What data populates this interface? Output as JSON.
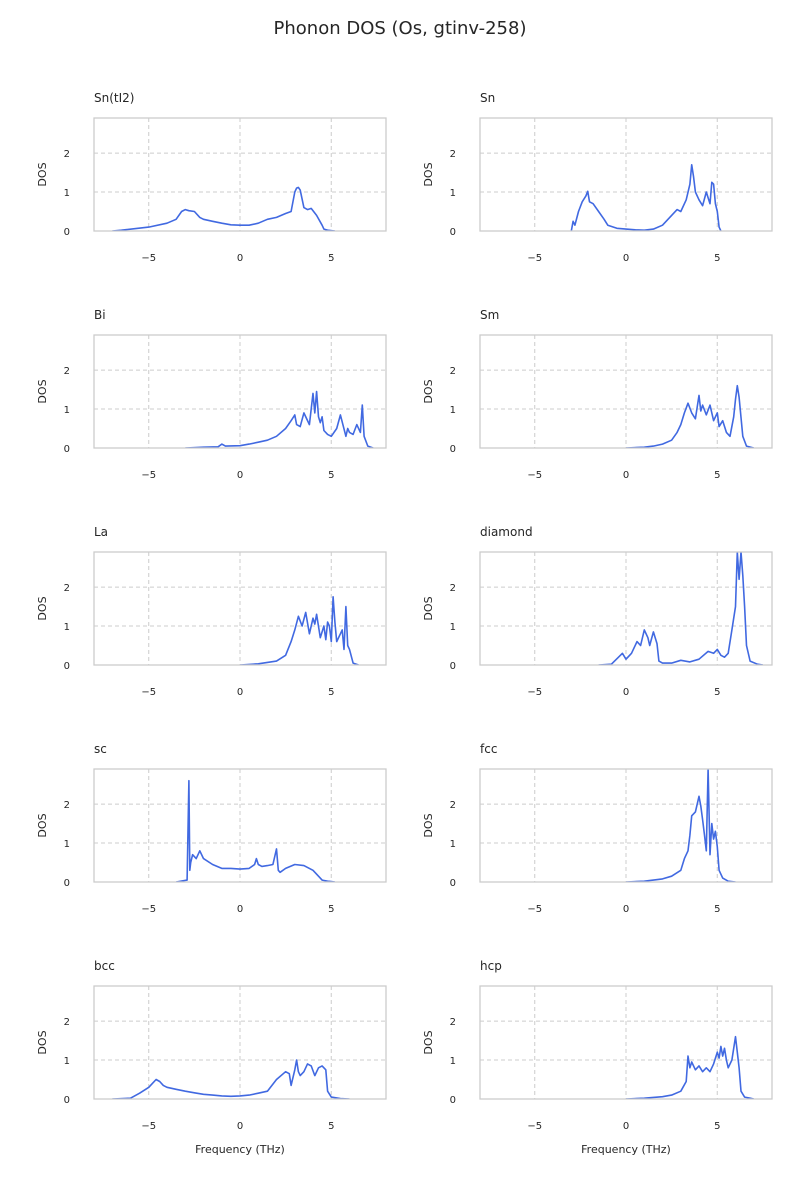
{
  "figure": {
    "title": "Phonon DOS (Os, gtinv-258)"
  },
  "chart_data": [
    {
      "type": "line",
      "title": "Sn(tI2)",
      "xlabel": "",
      "ylabel": "DOS",
      "xlim": [
        -8,
        8
      ],
      "ylim": [
        0,
        2.9
      ],
      "xticks": [
        -5,
        0,
        5
      ],
      "yticks": [
        0,
        1,
        2
      ],
      "grid": true,
      "series": [
        {
          "x": [
            -7,
            -6.5,
            -5,
            -4,
            -3.5,
            -3.2,
            -3.0,
            -2.8,
            -2.5,
            -2.2,
            -2.0,
            -1.5,
            -1.0,
            -0.5,
            0,
            0.5,
            1.0,
            1.5,
            2.0,
            2.5,
            2.8,
            3.0,
            3.1,
            3.2,
            3.3,
            3.5,
            3.7,
            3.9,
            4.2,
            4.5,
            4.6,
            4.8,
            5.2
          ],
          "y": [
            0,
            0.02,
            0.1,
            0.2,
            0.3,
            0.5,
            0.55,
            0.52,
            0.5,
            0.35,
            0.3,
            0.25,
            0.2,
            0.16,
            0.15,
            0.15,
            0.2,
            0.3,
            0.35,
            0.45,
            0.5,
            1.0,
            1.1,
            1.12,
            1.05,
            0.6,
            0.55,
            0.58,
            0.4,
            0.15,
            0.05,
            0.02,
            0
          ]
        }
      ]
    },
    {
      "type": "line",
      "title": "Sn",
      "xlabel": "",
      "ylabel": "DOS",
      "xlim": [
        -8,
        8
      ],
      "ylim": [
        0,
        2.9
      ],
      "xticks": [
        -5,
        0,
        5
      ],
      "yticks": [
        0,
        1,
        2
      ],
      "grid": true,
      "series": [
        {
          "x": [
            -3.0,
            -2.9,
            -2.8,
            -2.6,
            -2.4,
            -2.2,
            -2.1,
            -2.0,
            -1.8,
            -1.5,
            -1.2,
            -1.0,
            -0.5,
            0,
            0.5,
            1.0,
            1.5,
            2.0,
            2.5,
            2.8,
            3.0,
            3.3,
            3.5,
            3.6,
            3.7,
            3.8,
            4.0,
            4.2,
            4.4,
            4.6,
            4.7,
            4.8,
            4.9,
            5.0,
            5.1,
            5.2
          ],
          "y": [
            0,
            0.25,
            0.15,
            0.5,
            0.75,
            0.9,
            1.02,
            0.75,
            0.7,
            0.5,
            0.3,
            0.15,
            0.07,
            0.05,
            0.03,
            0.02,
            0.05,
            0.15,
            0.4,
            0.55,
            0.5,
            0.8,
            1.2,
            1.7,
            1.4,
            1.0,
            0.8,
            0.65,
            1.0,
            0.7,
            1.25,
            1.2,
            0.7,
            0.5,
            0.1,
            0
          ]
        }
      ]
    },
    {
      "type": "line",
      "title": "Bi",
      "xlabel": "",
      "ylabel": "DOS",
      "xlim": [
        -8,
        8
      ],
      "ylim": [
        0,
        2.9
      ],
      "xticks": [
        -5,
        0,
        5
      ],
      "yticks": [
        0,
        1,
        2
      ],
      "grid": true,
      "series": [
        {
          "x": [
            -3,
            -2,
            -1.2,
            -1.0,
            -0.8,
            0,
            0.5,
            1.0,
            1.5,
            2.0,
            2.5,
            2.8,
            3.0,
            3.1,
            3.3,
            3.5,
            3.8,
            4.0,
            4.1,
            4.2,
            4.3,
            4.4,
            4.5,
            4.6,
            4.8,
            5.0,
            5.3,
            5.5,
            5.8,
            5.9,
            6.0,
            6.2,
            6.4,
            6.6,
            6.7,
            6.8,
            7.0,
            7.3
          ],
          "y": [
            0,
            0.02,
            0.03,
            0.1,
            0.05,
            0.06,
            0.1,
            0.15,
            0.2,
            0.3,
            0.5,
            0.7,
            0.85,
            0.6,
            0.55,
            0.9,
            0.6,
            1.4,
            0.9,
            1.45,
            0.8,
            0.65,
            0.8,
            0.45,
            0.35,
            0.3,
            0.5,
            0.85,
            0.3,
            0.5,
            0.4,
            0.35,
            0.6,
            0.4,
            1.1,
            0.3,
            0.05,
            0
          ]
        }
      ]
    },
    {
      "type": "line",
      "title": "Sm",
      "xlabel": "",
      "ylabel": "DOS",
      "xlim": [
        -8,
        8
      ],
      "ylim": [
        0,
        2.9
      ],
      "xticks": [
        -5,
        0,
        5
      ],
      "yticks": [
        0,
        1,
        2
      ],
      "grid": true,
      "series": [
        {
          "x": [
            0,
            1,
            1.5,
            2.0,
            2.5,
            2.8,
            3.0,
            3.2,
            3.4,
            3.6,
            3.8,
            4.0,
            4.1,
            4.2,
            4.4,
            4.6,
            4.8,
            5.0,
            5.1,
            5.3,
            5.5,
            5.7,
            5.9,
            6.0,
            6.1,
            6.2,
            6.4,
            6.6,
            7.0
          ],
          "y": [
            0,
            0.02,
            0.05,
            0.1,
            0.2,
            0.4,
            0.6,
            0.9,
            1.15,
            0.9,
            0.75,
            1.35,
            0.95,
            1.1,
            0.85,
            1.1,
            0.7,
            0.9,
            0.55,
            0.7,
            0.4,
            0.3,
            0.8,
            1.25,
            1.6,
            1.3,
            0.3,
            0.05,
            0
          ]
        }
      ]
    },
    {
      "type": "line",
      "title": "La",
      "xlabel": "",
      "ylabel": "DOS",
      "xlim": [
        -8,
        8
      ],
      "ylim": [
        0,
        2.9
      ],
      "xticks": [
        -5,
        0,
        5
      ],
      "yticks": [
        0,
        1,
        2
      ],
      "grid": true,
      "series": [
        {
          "x": [
            0,
            1,
            2.0,
            2.5,
            2.8,
            3.0,
            3.2,
            3.4,
            3.6,
            3.8,
            4.0,
            4.1,
            4.2,
            4.4,
            4.6,
            4.7,
            4.8,
            4.9,
            5.0,
            5.1,
            5.2,
            5.3,
            5.5,
            5.6,
            5.7,
            5.8,
            5.9,
            6.0,
            6.2,
            6.5
          ],
          "y": [
            0,
            0.03,
            0.1,
            0.25,
            0.6,
            0.9,
            1.25,
            1.0,
            1.35,
            0.8,
            1.2,
            1.05,
            1.3,
            0.7,
            1.0,
            0.65,
            1.1,
            1.0,
            0.6,
            1.75,
            1.1,
            0.6,
            0.8,
            0.9,
            0.4,
            1.5,
            0.5,
            0.4,
            0.05,
            0
          ]
        }
      ]
    },
    {
      "type": "line",
      "title": "diamond",
      "xlabel": "",
      "ylabel": "DOS",
      "xlim": [
        -8,
        8
      ],
      "ylim": [
        0,
        2.9
      ],
      "xticks": [
        -5,
        0,
        5
      ],
      "yticks": [
        0,
        1,
        2
      ],
      "grid": true,
      "series": [
        {
          "x": [
            -1.5,
            -0.8,
            -0.2,
            0,
            0.3,
            0.6,
            0.8,
            1.0,
            1.2,
            1.3,
            1.5,
            1.7,
            1.8,
            2.0,
            2.5,
            3.0,
            3.5,
            4.0,
            4.5,
            4.8,
            5.0,
            5.2,
            5.4,
            5.6,
            5.8,
            6.0,
            6.1,
            6.2,
            6.3,
            6.4,
            6.5,
            6.6,
            6.8,
            7.2,
            7.5
          ],
          "y": [
            0,
            0.02,
            0.3,
            0.15,
            0.3,
            0.6,
            0.5,
            0.9,
            0.7,
            0.5,
            0.85,
            0.55,
            0.1,
            0.05,
            0.05,
            0.12,
            0.08,
            0.15,
            0.35,
            0.3,
            0.4,
            0.25,
            0.2,
            0.3,
            0.9,
            1.5,
            2.95,
            2.2,
            2.95,
            2.3,
            1.5,
            0.5,
            0.1,
            0.02,
            0
          ]
        }
      ]
    },
    {
      "type": "line",
      "title": "sc",
      "xlabel": "",
      "ylabel": "DOS",
      "xlim": [
        -8,
        8
      ],
      "ylim": [
        0,
        2.9
      ],
      "xticks": [
        -5,
        0,
        5
      ],
      "yticks": [
        0,
        1,
        2
      ],
      "grid": true,
      "series": [
        {
          "x": [
            -3.5,
            -2.9,
            -2.8,
            -2.75,
            -2.7,
            -2.6,
            -2.4,
            -2.2,
            -2.0,
            -1.5,
            -1.0,
            -0.5,
            0,
            0.5,
            0.8,
            0.9,
            1.0,
            1.2,
            1.5,
            1.8,
            2.0,
            2.1,
            2.2,
            2.5,
            3.0,
            3.5,
            4.0,
            4.3,
            4.5,
            4.8,
            5.0,
            5.2
          ],
          "y": [
            0,
            0.05,
            2.6,
            0.3,
            0.5,
            0.7,
            0.6,
            0.8,
            0.6,
            0.45,
            0.35,
            0.35,
            0.33,
            0.35,
            0.45,
            0.6,
            0.45,
            0.4,
            0.42,
            0.45,
            0.85,
            0.3,
            0.25,
            0.35,
            0.45,
            0.42,
            0.3,
            0.15,
            0.05,
            0.02,
            0.01,
            0
          ]
        }
      ]
    },
    {
      "type": "line",
      "title": "fcc",
      "xlabel": "",
      "ylabel": "DOS",
      "xlim": [
        -8,
        8
      ],
      "ylim": [
        0,
        2.9
      ],
      "xticks": [
        -5,
        0,
        5
      ],
      "yticks": [
        0,
        1,
        2
      ],
      "grid": true,
      "series": [
        {
          "x": [
            0,
            1,
            2.0,
            2.5,
            3.0,
            3.2,
            3.4,
            3.5,
            3.6,
            3.8,
            4.0,
            4.1,
            4.2,
            4.3,
            4.4,
            4.5,
            4.6,
            4.7,
            4.8,
            4.9,
            5.0,
            5.1,
            5.3,
            5.6,
            6.0
          ],
          "y": [
            0,
            0.02,
            0.08,
            0.15,
            0.3,
            0.6,
            0.8,
            1.2,
            1.7,
            1.8,
            2.2,
            1.95,
            1.6,
            1.2,
            0.8,
            2.9,
            0.7,
            1.5,
            1.1,
            1.3,
            0.9,
            0.3,
            0.1,
            0.02,
            0
          ]
        }
      ]
    },
    {
      "type": "line",
      "title": "bcc",
      "xlabel": "Frequency (THz)",
      "ylabel": "DOS",
      "xlim": [
        -8,
        8
      ],
      "ylim": [
        0,
        2.9
      ],
      "xticks": [
        -5,
        0,
        5
      ],
      "yticks": [
        0,
        1,
        2
      ],
      "grid": true,
      "series": [
        {
          "x": [
            -7,
            -6,
            -5.5,
            -5,
            -4.8,
            -4.6,
            -4.4,
            -4.2,
            -4.0,
            -3.5,
            -3.0,
            -2.5,
            -2.0,
            -1.5,
            -1.0,
            -0.5,
            0,
            0.5,
            1.0,
            1.5,
            2.0,
            2.5,
            2.7,
            2.8,
            3.0,
            3.1,
            3.2,
            3.3,
            3.5,
            3.7,
            3.9,
            4.1,
            4.3,
            4.5,
            4.7,
            4.8,
            5.0,
            5.5,
            6.0
          ],
          "y": [
            0,
            0.02,
            0.15,
            0.3,
            0.4,
            0.5,
            0.45,
            0.35,
            0.3,
            0.25,
            0.2,
            0.16,
            0.12,
            0.1,
            0.08,
            0.07,
            0.08,
            0.1,
            0.15,
            0.2,
            0.5,
            0.7,
            0.65,
            0.35,
            0.75,
            1.0,
            0.7,
            0.6,
            0.7,
            0.9,
            0.85,
            0.6,
            0.8,
            0.85,
            0.75,
            0.2,
            0.05,
            0.01,
            0
          ]
        }
      ]
    },
    {
      "type": "line",
      "title": "hcp",
      "xlabel": "Frequency (THz)",
      "ylabel": "DOS",
      "xlim": [
        -8,
        8
      ],
      "ylim": [
        0,
        2.9
      ],
      "xticks": [
        -5,
        0,
        5
      ],
      "yticks": [
        0,
        1,
        2
      ],
      "grid": true,
      "series": [
        {
          "x": [
            0,
            1,
            2.0,
            2.5,
            3.0,
            3.3,
            3.4,
            3.5,
            3.6,
            3.8,
            4.0,
            4.2,
            4.4,
            4.6,
            4.8,
            5.0,
            5.1,
            5.2,
            5.3,
            5.4,
            5.5,
            5.6,
            5.8,
            6.0,
            6.1,
            6.2,
            6.3,
            6.5,
            6.8,
            7.0
          ],
          "y": [
            0,
            0.02,
            0.06,
            0.1,
            0.2,
            0.45,
            1.1,
            0.8,
            0.95,
            0.75,
            0.85,
            0.7,
            0.8,
            0.7,
            0.9,
            1.2,
            1.05,
            1.35,
            1.1,
            1.3,
            1.0,
            0.8,
            1.0,
            1.6,
            1.2,
            0.8,
            0.2,
            0.05,
            0.02,
            0
          ]
        }
      ]
    }
  ]
}
